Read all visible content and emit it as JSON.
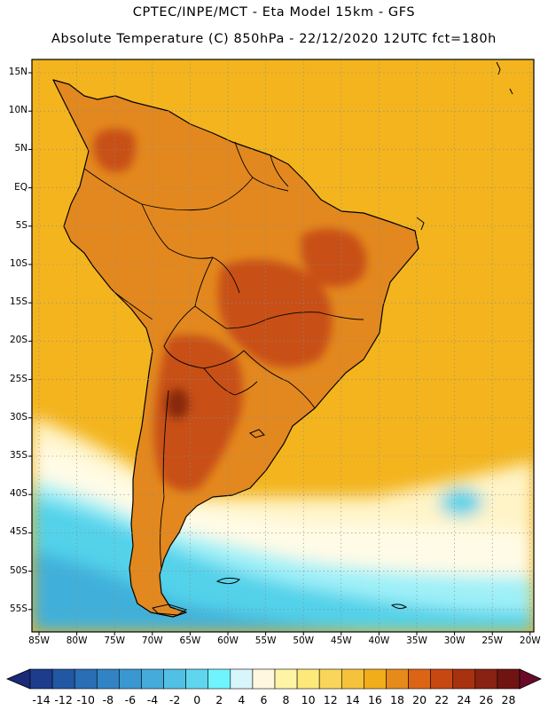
{
  "header": {
    "line1": "CPTEC/INPE/MCT -  Eta Model 15km - GFS",
    "line2": "Absolute Temperature (C) 850hPa - 22/12/2020 12UTC fct=180h"
  },
  "map": {
    "region": "South America",
    "lat_ticks": [
      "15N",
      "10N",
      "5N",
      "EQ",
      "5S",
      "10S",
      "15S",
      "20S",
      "25S",
      "30S",
      "35S",
      "40S",
      "45S",
      "50S",
      "55S"
    ],
    "lon_ticks": [
      "85W",
      "80W",
      "75W",
      "70W",
      "65W",
      "60W",
      "55W",
      "50W",
      "45W",
      "40W",
      "35W",
      "30W",
      "25W",
      "20W"
    ],
    "ocean_color": "#f3b41e",
    "land_color": "#e3881e",
    "hot_color": "#c85012",
    "cold_color": "#34c4dc"
  },
  "colorbar": {
    "labels": [
      "-14",
      "-12",
      "-10",
      "-8",
      "-6",
      "-4",
      "-2",
      "0",
      "2",
      "4",
      "6",
      "8",
      "10",
      "12",
      "14",
      "16",
      "18",
      "20",
      "22",
      "24",
      "26",
      "28"
    ],
    "colors": [
      "#1d3c8c",
      "#2257a3",
      "#2a6eb5",
      "#3183c4",
      "#3a97d0",
      "#45abda",
      "#52c0e4",
      "#60d6ee",
      "#6ff4fd",
      "#d7f5fb",
      "#fff7df",
      "#fff4a5",
      "#fde87a",
      "#f9d55a",
      "#f5c23b",
      "#f2ad1a",
      "#e68a1a",
      "#dc6415",
      "#c84812",
      "#a83210",
      "#882212",
      "#701412"
    ],
    "end_low_color": "#1a2a78",
    "end_high_color": "#6a0a28"
  }
}
